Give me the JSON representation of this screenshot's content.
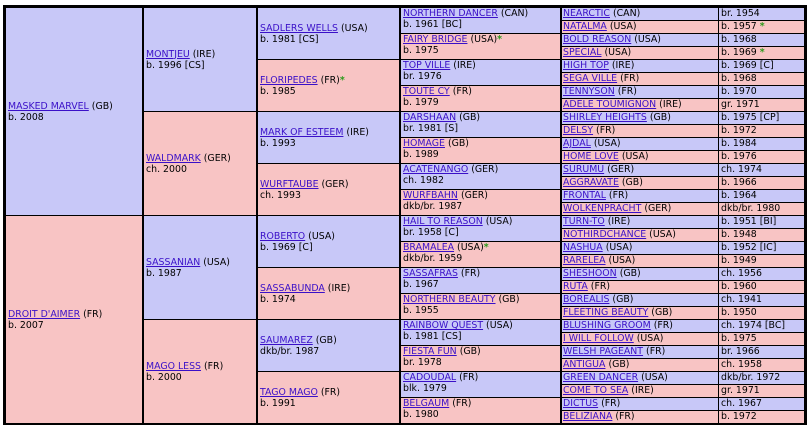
{
  "gen1": [
    {
      "name": "MASKED MARVEL",
      "country": "(GB)",
      "info": "b. 2008",
      "sex": "m"
    },
    {
      "name": "DROIT D'AIMER",
      "country": "(FR)",
      "info": "b. 2007",
      "sex": "f"
    }
  ],
  "gen2": [
    {
      "name": "MONTJEU",
      "country": "(IRE)",
      "info": "b. 1996 [CS]",
      "sex": "m"
    },
    {
      "name": "WALDMARK",
      "country": "(GER)",
      "info": "ch. 2000",
      "sex": "f"
    },
    {
      "name": "SASSANIAN",
      "country": "(USA)",
      "info": "b. 1987",
      "sex": "m"
    },
    {
      "name": "MAGO LESS",
      "country": "(FR)",
      "info": "b. 2000",
      "sex": "f"
    }
  ],
  "gen3": [
    {
      "name": "SADLERS WELLS",
      "country": "(USA)",
      "info": "b. 1981 [CS]",
      "sex": "m",
      "star": ""
    },
    {
      "name": "FLORIPEDES",
      "country": "(FR)",
      "info": "b. 1985",
      "sex": "f",
      "star": "*"
    },
    {
      "name": "MARK OF ESTEEM",
      "country": "(IRE)",
      "info": "b. 1993",
      "sex": "m",
      "star": ""
    },
    {
      "name": "WURFTAUBE",
      "country": "(GER)",
      "info": "ch. 1993",
      "sex": "f",
      "star": ""
    },
    {
      "name": "ROBERTO",
      "country": "(USA)",
      "info": "b. 1969 [C]",
      "sex": "m",
      "star": ""
    },
    {
      "name": "SASSABUNDA",
      "country": "(IRE)",
      "info": "b. 1974",
      "sex": "f",
      "star": ""
    },
    {
      "name": "SAUMAREZ",
      "country": "(GB)",
      "info": "dkb/br. 1987",
      "sex": "m",
      "star": ""
    },
    {
      "name": "TAGO MAGO",
      "country": "(FR)",
      "info": "b. 1991",
      "sex": "f",
      "star": ""
    }
  ],
  "gen4": [
    {
      "name": "NORTHERN DANCER",
      "country": "(CAN)",
      "info": "b. 1961 [BC]",
      "sex": "m",
      "star": ""
    },
    {
      "name": "FAIRY BRIDGE",
      "country": "(USA)",
      "info": "b. 1975",
      "sex": "f",
      "star": "*"
    },
    {
      "name": "TOP VILLE",
      "country": "(IRE)",
      "info": "br. 1976",
      "sex": "m",
      "star": ""
    },
    {
      "name": "TOUTE CY",
      "country": "(FR)",
      "info": "b. 1979",
      "sex": "f",
      "star": ""
    },
    {
      "name": "DARSHAAN",
      "country": "(GB)",
      "info": "br. 1981 [S]",
      "sex": "m",
      "star": ""
    },
    {
      "name": "HOMAGE",
      "country": "(GB)",
      "info": "b. 1989",
      "sex": "f",
      "star": ""
    },
    {
      "name": "ACATENANGO",
      "country": "(GER)",
      "info": "ch. 1982",
      "sex": "m",
      "star": ""
    },
    {
      "name": "WURFBAHN",
      "country": "(GER)",
      "info": "dkb/br. 1987",
      "sex": "f",
      "star": ""
    },
    {
      "name": "HAIL TO REASON",
      "country": "(USA)",
      "info": "br. 1958 [C]",
      "sex": "m",
      "star": ""
    },
    {
      "name": "BRAMALEA",
      "country": "(USA)",
      "info": "dkb/br. 1959",
      "sex": "f",
      "star": "*"
    },
    {
      "name": "SASSAFRAS",
      "country": "(FR)",
      "info": "b. 1967",
      "sex": "m",
      "star": ""
    },
    {
      "name": "NORTHERN BEAUTY",
      "country": "(GB)",
      "info": "b. 1955",
      "sex": "f",
      "star": ""
    },
    {
      "name": "RAINBOW QUEST",
      "country": "(USA)",
      "info": "b. 1981 [CS]",
      "sex": "m",
      "star": ""
    },
    {
      "name": "FIESTA FUN",
      "country": "(GB)",
      "info": "br. 1978",
      "sex": "f",
      "star": ""
    },
    {
      "name": "CADOUDAL",
      "country": "(FR)",
      "info": "blk. 1979",
      "sex": "m",
      "star": ""
    },
    {
      "name": "BELGAUM",
      "country": "(FR)",
      "info": "b. 1980",
      "sex": "f",
      "star": ""
    }
  ],
  "gen5": [
    {
      "name": "NEARCTIC",
      "country": "(CAN)",
      "info": "br. 1954",
      "sex": "m",
      "star": ""
    },
    {
      "name": "NATALMA",
      "country": "(USA)",
      "info": "b. 1957",
      "sex": "f",
      "star": "*"
    },
    {
      "name": "BOLD REASON",
      "country": "(USA)",
      "info": "b. 1968",
      "sex": "m",
      "star": ""
    },
    {
      "name": "SPECIAL",
      "country": "(USA)",
      "info": "b. 1969",
      "sex": "f",
      "star": "*"
    },
    {
      "name": "HIGH TOP",
      "country": "(IRE)",
      "info": "b. 1969 [C]",
      "sex": "m",
      "star": ""
    },
    {
      "name": "SEGA VILLE",
      "country": "(FR)",
      "info": "b. 1968",
      "sex": "f",
      "star": ""
    },
    {
      "name": "TENNYSON",
      "country": "(FR)",
      "info": "b. 1970",
      "sex": "m",
      "star": ""
    },
    {
      "name": "ADELE TOUMIGNON",
      "country": "(IRE)",
      "info": "gr. 1971",
      "sex": "f",
      "star": ""
    },
    {
      "name": "SHIRLEY HEIGHTS",
      "country": "(GB)",
      "info": "b. 1975 [CP]",
      "sex": "m",
      "star": ""
    },
    {
      "name": "DELSY",
      "country": "(FR)",
      "info": "b. 1972",
      "sex": "f",
      "star": ""
    },
    {
      "name": "AJDAL",
      "country": "(USA)",
      "info": "b. 1984",
      "sex": "m",
      "star": ""
    },
    {
      "name": "HOME LOVE",
      "country": "(USA)",
      "info": "b. 1976",
      "sex": "f",
      "star": ""
    },
    {
      "name": "SURUMU",
      "country": "(GER)",
      "info": "ch. 1974",
      "sex": "m",
      "star": ""
    },
    {
      "name": "AGGRAVATE",
      "country": "(GB)",
      "info": "b. 1966",
      "sex": "f",
      "star": ""
    },
    {
      "name": "FRONTAL",
      "country": "(FR)",
      "info": "b. 1964",
      "sex": "m",
      "star": ""
    },
    {
      "name": "WOLKENPRACHT",
      "country": "(GER)",
      "info": "dkb/br. 1980",
      "sex": "f",
      "star": ""
    },
    {
      "name": "TURN-TO",
      "country": "(IRE)",
      "info": "b. 1951 [BI]",
      "sex": "m",
      "star": ""
    },
    {
      "name": "NOTHIRDCHANCE",
      "country": "(USA)",
      "info": "b. 1948",
      "sex": "f",
      "star": ""
    },
    {
      "name": "NASHUA",
      "country": "(USA)",
      "info": "b. 1952 [IC]",
      "sex": "m",
      "star": ""
    },
    {
      "name": "RARELEA",
      "country": "(USA)",
      "info": "b. 1949",
      "sex": "f",
      "star": ""
    },
    {
      "name": "SHESHOON",
      "country": "(GB)",
      "info": "ch. 1956",
      "sex": "m",
      "star": ""
    },
    {
      "name": "RUTA",
      "country": "(FR)",
      "info": "b. 1960",
      "sex": "f",
      "star": ""
    },
    {
      "name": "BOREALIS",
      "country": "(GB)",
      "info": "ch. 1941",
      "sex": "m",
      "star": ""
    },
    {
      "name": "FLEETING BEAUTY",
      "country": "(GB)",
      "info": "b. 1950",
      "sex": "f",
      "star": ""
    },
    {
      "name": "BLUSHING GROOM",
      "country": "(FR)",
      "info": "ch. 1974 [BC]",
      "sex": "m",
      "star": ""
    },
    {
      "name": "I WILL FOLLOW",
      "country": "(USA)",
      "info": "b. 1975",
      "sex": "f",
      "star": ""
    },
    {
      "name": "WELSH PAGEANT",
      "country": "(FR)",
      "info": "br. 1966",
      "sex": "m",
      "star": ""
    },
    {
      "name": "ANTIGUA",
      "country": "(GB)",
      "info": "ch. 1958",
      "sex": "f",
      "star": ""
    },
    {
      "name": "GREEN DANCER",
      "country": "(USA)",
      "info": "dkb/br. 1972",
      "sex": "m",
      "star": ""
    },
    {
      "name": "COME TO SEA",
      "country": "(IRE)",
      "info": "gr. 1971",
      "sex": "f",
      "star": ""
    },
    {
      "name": "DICTUS",
      "country": "(FR)",
      "info": "ch. 1967",
      "sex": "m",
      "star": ""
    },
    {
      "name": "BELIZIANA",
      "country": "(FR)",
      "info": "b. 1972",
      "sex": "f",
      "star": ""
    }
  ],
  "colors": {
    "male": "#c8c8f8",
    "female": "#f8c4c4",
    "link": "#3a10c8",
    "star": "#2c9a1c"
  }
}
